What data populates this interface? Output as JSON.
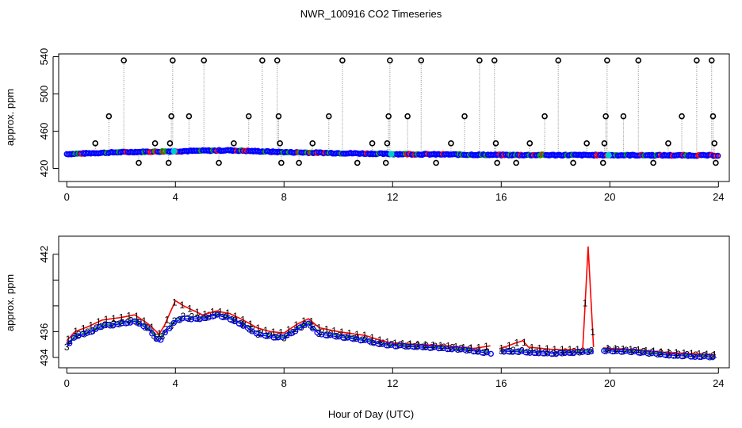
{
  "title": "NWR_100916  CO2 Timeseries",
  "xlabel": "Hour of Day (UTC)",
  "colors": {
    "series_main": "#0000ff",
    "series_alt": "#00aa00",
    "series_flag": "#ff0000",
    "series_cyan": "#00cccc",
    "outlier": "#000000",
    "line_gray": "#888888"
  },
  "chart_data": [
    {
      "type": "scatter",
      "panel": "top",
      "title": "NWR_100916  CO2 Timeseries",
      "ylabel": "approx. ppm",
      "xlim": [
        -0.3,
        24.4
      ],
      "ylim": [
        406,
        543
      ],
      "xticks": [
        0,
        4,
        8,
        12,
        16,
        20,
        24
      ],
      "xtick_labels": [
        "0",
        "4",
        "8",
        "12",
        "16",
        "20",
        "24"
      ],
      "yticks": [
        420,
        460,
        500,
        540
      ],
      "ytick_labels": [
        "420",
        "460",
        "500",
        "540"
      ],
      "baseline": [
        [
          0,
          435.5
        ],
        [
          2,
          437.5
        ],
        [
          4,
          438.5
        ],
        [
          6,
          439.5
        ],
        [
          8,
          437.5
        ],
        [
          10,
          436.5
        ],
        [
          12,
          435.5
        ],
        [
          16,
          434.5
        ],
        [
          20,
          434.3
        ],
        [
          24,
          434
        ]
      ],
      "spikes": [
        {
          "x": 1.05,
          "y": 447
        },
        {
          "x": 1.55,
          "y": 476
        },
        {
          "x": 2.1,
          "y": 536
        },
        {
          "x": 2.65,
          "y": 426
        },
        {
          "x": 3.25,
          "y": 447
        },
        {
          "x": 3.75,
          "y": 426
        },
        {
          "x": 3.8,
          "y": 447
        },
        {
          "x": 3.85,
          "y": 476
        },
        {
          "x": 3.9,
          "y": 536
        },
        {
          "x": 4.5,
          "y": 476
        },
        {
          "x": 5.05,
          "y": 536
        },
        {
          "x": 5.6,
          "y": 426
        },
        {
          "x": 6.15,
          "y": 447
        },
        {
          "x": 6.7,
          "y": 476
        },
        {
          "x": 7.2,
          "y": 536
        },
        {
          "x": 7.75,
          "y": 536
        },
        {
          "x": 7.8,
          "y": 476
        },
        {
          "x": 7.85,
          "y": 447
        },
        {
          "x": 7.9,
          "y": 426
        },
        {
          "x": 8.55,
          "y": 426
        },
        {
          "x": 9.05,
          "y": 447
        },
        {
          "x": 9.65,
          "y": 476
        },
        {
          "x": 10.15,
          "y": 536
        },
        {
          "x": 10.7,
          "y": 426
        },
        {
          "x": 11.25,
          "y": 447
        },
        {
          "x": 11.75,
          "y": 426
        },
        {
          "x": 11.8,
          "y": 447
        },
        {
          "x": 11.85,
          "y": 476
        },
        {
          "x": 11.9,
          "y": 536
        },
        {
          "x": 12.55,
          "y": 476
        },
        {
          "x": 13.05,
          "y": 536
        },
        {
          "x": 13.6,
          "y": 426
        },
        {
          "x": 14.15,
          "y": 447
        },
        {
          "x": 14.65,
          "y": 476
        },
        {
          "x": 15.2,
          "y": 536
        },
        {
          "x": 15.75,
          "y": 536
        },
        {
          "x": 15.8,
          "y": 447
        },
        {
          "x": 15.85,
          "y": 426
        },
        {
          "x": 16.55,
          "y": 426
        },
        {
          "x": 17.05,
          "y": 447
        },
        {
          "x": 17.6,
          "y": 476
        },
        {
          "x": 18.1,
          "y": 536
        },
        {
          "x": 18.65,
          "y": 426
        },
        {
          "x": 19.15,
          "y": 447
        },
        {
          "x": 19.75,
          "y": 426
        },
        {
          "x": 19.8,
          "y": 447
        },
        {
          "x": 19.85,
          "y": 476
        },
        {
          "x": 19.9,
          "y": 536
        },
        {
          "x": 20.5,
          "y": 476
        },
        {
          "x": 21.05,
          "y": 536
        },
        {
          "x": 21.6,
          "y": 426
        },
        {
          "x": 22.15,
          "y": 447
        },
        {
          "x": 22.65,
          "y": 476
        },
        {
          "x": 23.2,
          "y": 536
        },
        {
          "x": 23.75,
          "y": 536
        },
        {
          "x": 23.8,
          "y": 476
        },
        {
          "x": 23.85,
          "y": 447
        },
        {
          "x": 23.9,
          "y": 426
        }
      ]
    },
    {
      "type": "line",
      "panel": "bottom",
      "ylabel": "approx. ppm",
      "xlim": [
        -0.3,
        24.4
      ],
      "ylim": [
        433.2,
        443.4
      ],
      "xticks": [
        0,
        4,
        8,
        12,
        16,
        20,
        24
      ],
      "xtick_labels": [
        "0",
        "4",
        "8",
        "12",
        "16",
        "20",
        "24"
      ],
      "yticks": [
        434,
        436,
        438,
        440,
        442
      ],
      "ytick_labels": [
        "434",
        "436",
        "",
        "",
        "442"
      ],
      "series": [
        {
          "name": "3",
          "color": "#0000ff",
          "points": [
            [
              0,
              434.8
            ],
            [
              0.3,
              435.6
            ],
            [
              0.8,
              435.9
            ],
            [
              1.3,
              436.4
            ],
            [
              2,
              436.6
            ],
            [
              2.5,
              436.8
            ],
            [
              3,
              436.2
            ],
            [
              3.4,
              435.2
            ],
            [
              3.6,
              435.9
            ],
            [
              4.0,
              436.8
            ],
            [
              4.3,
              437
            ],
            [
              5,
              437
            ],
            [
              5.5,
              437.3
            ],
            [
              6,
              437
            ],
            [
              6.5,
              436.5
            ],
            [
              7,
              435.8
            ],
            [
              7.5,
              435.6
            ],
            [
              8,
              435.5
            ],
            [
              8.5,
              436.2
            ],
            [
              8.9,
              436.6
            ],
            [
              9.3,
              435.8
            ],
            [
              10,
              435.6
            ],
            [
              11,
              435.3
            ],
            [
              11.6,
              435
            ],
            [
              12,
              434.9
            ],
            [
              13,
              434.8
            ],
            [
              14,
              434.7
            ],
            [
              15,
              434.5
            ],
            [
              15.6,
              434.3
            ],
            [
              16,
              434.5
            ],
            [
              17,
              434.4
            ],
            [
              18,
              434.3
            ],
            [
              19,
              434.4
            ],
            [
              20,
              434.5
            ],
            [
              21,
              434.4
            ],
            [
              22,
              434.2
            ],
            [
              23,
              434.1
            ],
            [
              23.9,
              434
            ]
          ]
        },
        {
          "name": "2",
          "color": "#00aa00",
          "points": [
            [
              0,
              435.0
            ],
            [
              0.3,
              435.7
            ],
            [
              0.8,
              436.0
            ],
            [
              1.3,
              436.5
            ],
            [
              2,
              436.7
            ],
            [
              2.5,
              436.9
            ],
            [
              3,
              436.3
            ],
            [
              3.4,
              435.4
            ],
            [
              3.6,
              436.1
            ],
            [
              4.0,
              436.9
            ],
            [
              4.3,
              437.2
            ],
            [
              5,
              437.1
            ],
            [
              5.5,
              437.4
            ],
            [
              6,
              437.1
            ],
            [
              6.5,
              436.6
            ],
            [
              7,
              436
            ],
            [
              7.5,
              435.7
            ],
            [
              8,
              435.6
            ],
            [
              8.5,
              436.3
            ],
            [
              8.9,
              436.7
            ],
            [
              9.3,
              436
            ],
            [
              10,
              435.7
            ],
            [
              11,
              435.4
            ],
            [
              11.6,
              435.1
            ],
            [
              12,
              435
            ],
            [
              13,
              434.9
            ],
            [
              14,
              434.8
            ],
            [
              15,
              434.6
            ],
            [
              15.6,
              434.4
            ],
            [
              16,
              434.6
            ],
            [
              17,
              434.5
            ],
            [
              18,
              434.4
            ],
            [
              19,
              434.5
            ],
            [
              20,
              434.6
            ],
            [
              21,
              434.5
            ],
            [
              22,
              434.3
            ],
            [
              23,
              434.2
            ],
            [
              23.9,
              434.1
            ]
          ]
        },
        {
          "name": "1",
          "color": "#ff0000",
          "points": [
            [
              0,
              435.3
            ],
            [
              0.3,
              436.0
            ],
            [
              0.8,
              436.4
            ],
            [
              1.3,
              436.9
            ],
            [
              2,
              437.1
            ],
            [
              2.5,
              437.3
            ],
            [
              3,
              436.6
            ],
            [
              3.4,
              435.8
            ],
            [
              3.6,
              436.5
            ],
            [
              4.0,
              438.4
            ],
            [
              4.3,
              438.0
            ],
            [
              5,
              437.3
            ],
            [
              5.5,
              437.6
            ],
            [
              6,
              437.4
            ],
            [
              6.5,
              436.9
            ],
            [
              7,
              436.3
            ],
            [
              7.5,
              436.0
            ],
            [
              8,
              435.9
            ],
            [
              8.5,
              436.6
            ],
            [
              8.9,
              437.0
            ],
            [
              9.3,
              436.3
            ],
            [
              10,
              436.0
            ],
            [
              11,
              435.7
            ],
            [
              11.6,
              435.3
            ],
            [
              12,
              435.1
            ],
            [
              13,
              435.0
            ],
            [
              14,
              434.9
            ],
            [
              15,
              434.7
            ],
            [
              15.6,
              434.9
            ],
            [
              16,
              434.7
            ],
            [
              16.5,
              435.1
            ],
            [
              16.8,
              435.3
            ],
            [
              17,
              434.8
            ],
            [
              18,
              434.6
            ],
            [
              19,
              434.6
            ],
            [
              19.2,
              442.6
            ],
            [
              19.4,
              434.8
            ],
            [
              20,
              434.7
            ],
            [
              21,
              434.6
            ],
            [
              22,
              434.4
            ],
            [
              23,
              434.3
            ],
            [
              23.9,
              434.2
            ]
          ]
        }
      ]
    }
  ]
}
